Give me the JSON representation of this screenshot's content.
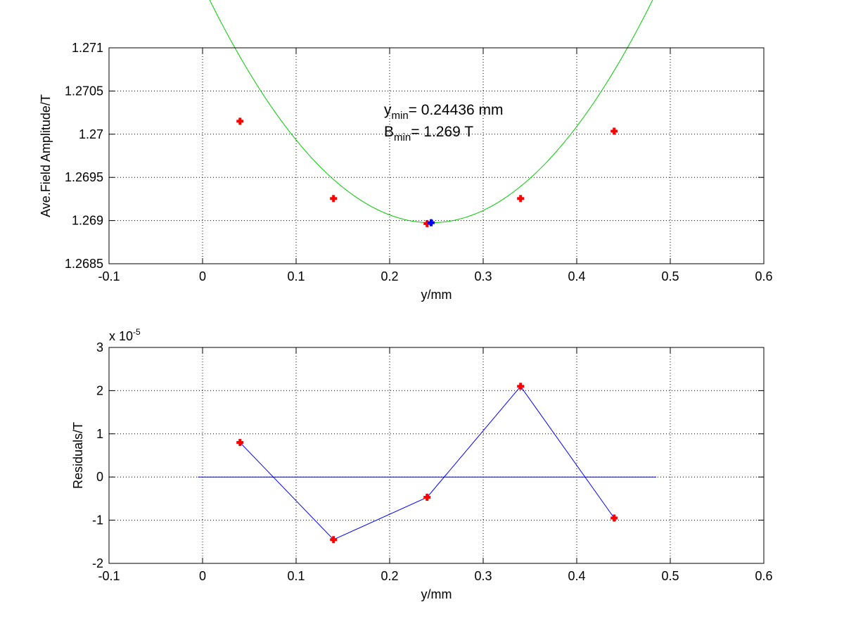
{
  "chart_data": [
    {
      "type": "scatter",
      "xlabel": "y/mm",
      "ylabel": "Ave.Field Amplitude/T",
      "xlim": [
        -0.1,
        0.6
      ],
      "ylim": [
        1.2685,
        1.271
      ],
      "xticks": [
        -0.1,
        0,
        0.1,
        0.2,
        0.3,
        0.4,
        0.5,
        0.6
      ],
      "xtick_labels": [
        "-0.1",
        "0",
        "0.1",
        "0.2",
        "0.3",
        "0.4",
        "0.5",
        "0.6"
      ],
      "yticks": [
        1.2685,
        1.269,
        1.2695,
        1.27,
        1.2705,
        1.271
      ],
      "ytick_labels": [
        "1.2685",
        "1.269",
        "1.2695",
        "1.27",
        "1.2705",
        "1.271"
      ],
      "grid": true,
      "series": [
        {
          "kind": "points",
          "color": "#ff0000",
          "x": [
            0.04,
            0.14,
            0.24,
            0.34,
            0.44
          ],
          "y": [
            1.27015,
            1.269255,
            1.268965,
            1.269255,
            1.270035
          ]
        },
        {
          "kind": "fit-curve",
          "color": "#00cc00",
          "x_range": [
            -0.005,
            0.485
          ],
          "coef": {
            "a": 0.046,
            "xmin": 0.24436,
            "ymin": 1.268975
          }
        },
        {
          "kind": "minimum-point",
          "color": "#0000ff",
          "x": [
            0.24436
          ],
          "y": [
            1.268975
          ]
        }
      ],
      "annotations": [
        {
          "var": "y",
          "sub": "min",
          "text": "= 0.24436 mm"
        },
        {
          "var": "B",
          "sub": "min",
          "text": "= 1.269 T"
        }
      ]
    },
    {
      "type": "line",
      "xlabel": "y/mm",
      "ylabel": "Residuals/T",
      "xlim": [
        -0.1,
        0.6
      ],
      "ylim": [
        -2,
        3
      ],
      "y_multiplier": {
        "base": "x 10",
        "exponent": "-5"
      },
      "xticks": [
        -0.1,
        0,
        0.1,
        0.2,
        0.3,
        0.4,
        0.5,
        0.6
      ],
      "xtick_labels": [
        "-0.1",
        "0",
        "0.1",
        "0.2",
        "0.3",
        "0.4",
        "0.5",
        "0.6"
      ],
      "yticks": [
        -2,
        -1,
        0,
        1,
        2,
        3
      ],
      "ytick_labels": [
        "-2",
        "-1",
        "0",
        "1",
        "2",
        "3"
      ],
      "grid": true,
      "series": [
        {
          "kind": "residuals",
          "color": "#ff0000",
          "line_color": "#0000ff",
          "x": [
            0.04,
            0.14,
            0.24,
            0.34,
            0.44
          ],
          "y": [
            0.8,
            -1.45,
            -0.47,
            2.1,
            -0.95
          ]
        },
        {
          "kind": "zero-line",
          "color": "#0000aa",
          "x": [
            -0.005,
            0.485
          ],
          "y": [
            0,
            0
          ]
        }
      ]
    }
  ]
}
